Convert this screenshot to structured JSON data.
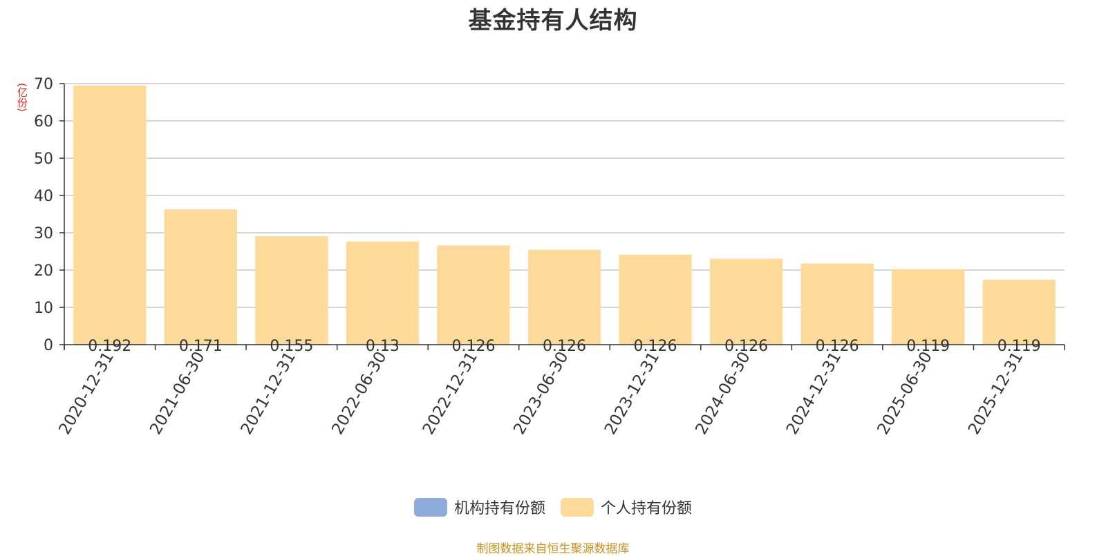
{
  "chart_data": {
    "type": "bar",
    "title": "基金持有人结构",
    "ylabel": "(亿份)",
    "xlabel": "",
    "ylim": [
      0,
      70
    ],
    "yticks": [
      0,
      10,
      20,
      30,
      40,
      50,
      60,
      70
    ],
    "grid": true,
    "legend_placement": "bottom-center",
    "categories": [
      "2020-12-31",
      "2021-06-30",
      "2021-12-31",
      "2022-06-30",
      "2022-12-31",
      "2023-06-30",
      "2023-12-31",
      "2024-06-30",
      "2024-12-31",
      "2025-06-30",
      "2025-12-31"
    ],
    "series": [
      {
        "name": "机构持有份额",
        "color": "#8eacd9",
        "values": [
          0.192,
          0.171,
          0.155,
          0.13,
          0.126,
          0.126,
          0.126,
          0.126,
          0.126,
          0.119,
          0.119
        ],
        "labels": [
          "0.192",
          "0.171",
          "0.155",
          "0.13",
          "0.126",
          "0.126",
          "0.126",
          "0.126",
          "0.126",
          "0.119",
          "0.119"
        ]
      },
      {
        "name": "个人持有份额",
        "color": "#fdd99a",
        "values": [
          69.3,
          36.1,
          28.9,
          27.5,
          26.5,
          25.3,
          24.0,
          22.9,
          21.6,
          20.1,
          17.3
        ]
      }
    ]
  },
  "footer": {
    "source": "制图数据来自恒生聚源数据库"
  }
}
